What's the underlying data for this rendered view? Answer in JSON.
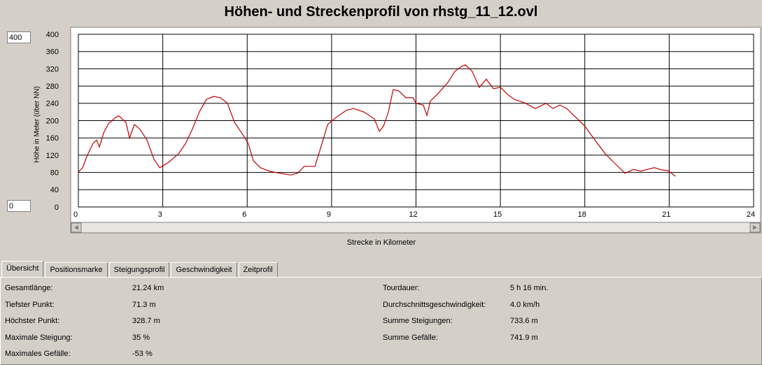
{
  "title": "Höhen- und Streckenprofil von rhstg_11_12.ovl",
  "range_inputs": {
    "max": "400",
    "min": "0"
  },
  "chart_data": {
    "type": "line",
    "x_label": "Strecke in Kilometer",
    "y_label": "Höhe in Meter (über NN)",
    "x": [
      0,
      0.15,
      0.32,
      0.52,
      0.65,
      0.75,
      0.9,
      1.07,
      1.32,
      1.44,
      1.69,
      1.82,
      1.99,
      2.19,
      2.44,
      2.69,
      2.89,
      3.18,
      3.56,
      3.81,
      4.05,
      4.3,
      4.55,
      4.8,
      5.05,
      5.3,
      5.55,
      5.8,
      6.04,
      6.22,
      6.47,
      6.79,
      7.16,
      7.54,
      7.79,
      8.03,
      8.41,
      8.66,
      8.86,
      9.15,
      9.53,
      9.78,
      10.15,
      10.52,
      10.7,
      10.85,
      11.02,
      11.19,
      11.39,
      11.64,
      11.89,
      12.01,
      12.26,
      12.39,
      12.51,
      12.76,
      13.13,
      13.38,
      13.63,
      13.76,
      14.0,
      14.25,
      14.5,
      14.75,
      15.0,
      15.25,
      15.5,
      15.87,
      16.24,
      16.62,
      16.87,
      17.11,
      17.36,
      17.61,
      17.99,
      18.36,
      18.73,
      19.1,
      19.43,
      19.73,
      19.98,
      20.22,
      20.47,
      20.72,
      20.97,
      21.22
    ],
    "series": [
      {
        "color": "#c00000",
        "values": [
          81,
          91,
          120,
          147,
          155,
          139,
          172,
          193,
          207,
          211,
          196,
          160,
          191,
          180,
          155,
          110,
          91,
          102,
          123,
          147,
          180,
          220,
          249,
          256,
          253,
          240,
          196,
          172,
          147,
          107,
          91,
          83,
          78,
          74,
          78,
          94,
          94,
          147,
          191,
          207,
          224,
          228,
          220,
          204,
          175,
          188,
          220,
          272,
          269,
          253,
          253,
          240,
          236,
          212,
          245,
          261,
          288,
          314,
          326,
          329,
          314,
          277,
          296,
          274,
          277,
          261,
          249,
          241,
          228,
          240,
          228,
          236,
          228,
          212,
          188,
          155,
          123,
          99,
          78,
          87,
          83,
          87,
          91,
          86,
          84,
          71
        ]
      }
    ],
    "xlim": [
      0,
      24
    ],
    "ylim": [
      0,
      400
    ],
    "xticks": [
      0,
      3,
      6,
      9,
      12,
      15,
      18,
      21,
      24
    ],
    "yticks": [
      0,
      40,
      80,
      120,
      160,
      200,
      240,
      280,
      320,
      360,
      400
    ],
    "grid": true
  },
  "tabs": [
    "Übersicht",
    "Positionsmarke",
    "Steigungsprofil",
    "Geschwindigkeit",
    "Zeitprofil"
  ],
  "summary": {
    "left": [
      [
        "Gesamtlänge:",
        "21.24 km"
      ],
      [
        "Tiefster Punkt:",
        "71.3 m"
      ],
      [
        "Höchster Punkt:",
        "328.7 m"
      ],
      [
        "Maximale Steigung:",
        "35 %"
      ],
      [
        "Maximales Gefälle:",
        "-53 %"
      ]
    ],
    "right": [
      [
        "Tourdauer:",
        "5 h 16 min."
      ],
      [
        "Durchschnittsgeschwindigkeit:",
        "4.0 km/h"
      ],
      [
        "Summe Steigungen:",
        "733.6 m"
      ],
      [
        "Summe Gefälle:",
        "741.9 m"
      ]
    ]
  }
}
